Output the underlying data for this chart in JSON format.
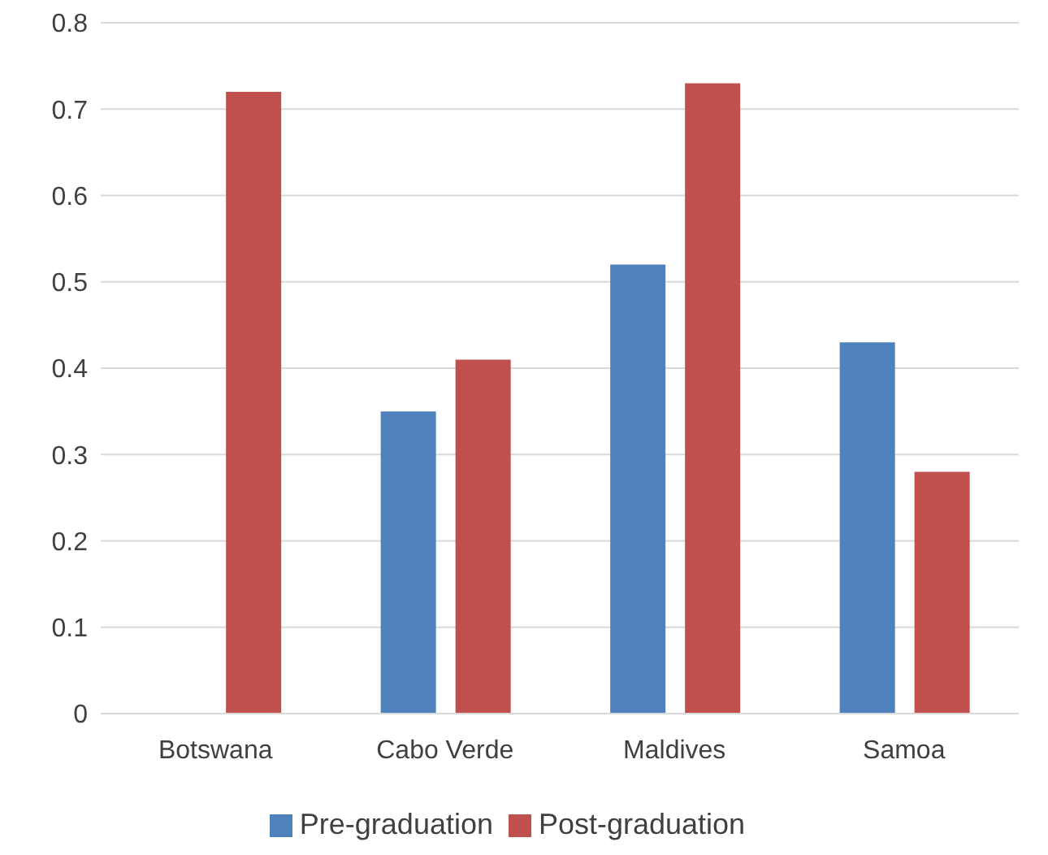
{
  "chart_data": {
    "type": "bar",
    "categories": [
      "Botswana",
      "Cabo Verde",
      "Maldives",
      "Samoa"
    ],
    "series": [
      {
        "name": "Pre-graduation",
        "color": "#4f81bd",
        "values": [
          null,
          0.35,
          0.52,
          0.43
        ]
      },
      {
        "name": "Post-graduation",
        "color": "#c0504d",
        "values": [
          0.72,
          0.41,
          0.73,
          0.28
        ]
      }
    ],
    "ylim": [
      0,
      0.8
    ],
    "yticks": [
      0,
      0.1,
      0.2,
      0.3,
      0.4,
      0.5,
      0.6,
      0.7,
      0.8
    ],
    "grid": "y",
    "legend": "bottom"
  }
}
